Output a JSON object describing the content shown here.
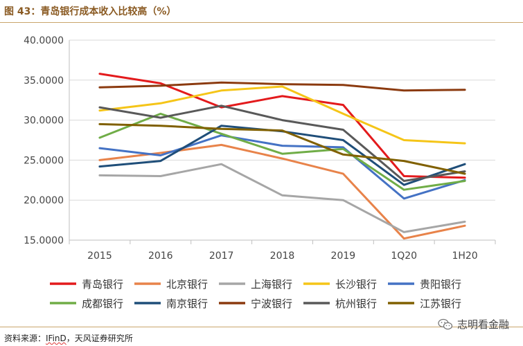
{
  "figure": {
    "title": "图 43：青岛银行成本收入比较高（%）",
    "source_prefix": "资料来源：",
    "source_squiggle": "IFinD",
    "source_suffix": "，天风证券研究所",
    "watermark": "志明看金融",
    "watermark_icon": "wechat-icon"
  },
  "chart_data": {
    "type": "line",
    "title": "",
    "xlabel": "",
    "ylabel": "",
    "x": [
      "2015",
      "2016",
      "2017",
      "2018",
      "2019",
      "1Q20",
      "1H20"
    ],
    "ylim": [
      15,
      40
    ],
    "yticks": [
      "15.0000",
      "20.0000",
      "25.0000",
      "30.0000",
      "35.0000",
      "40.0000"
    ],
    "grid": "horizontal",
    "legend_position": "bottom",
    "series": [
      {
        "name": "青岛银行",
        "color": "#e31a1c",
        "values": [
          35.8,
          34.6,
          31.6,
          33.0,
          31.9,
          23.0,
          22.8
        ]
      },
      {
        "name": "北京银行",
        "color": "#e8834a",
        "values": [
          25.0,
          25.9,
          26.9,
          25.2,
          23.3,
          15.2,
          16.8
        ]
      },
      {
        "name": "上海银行",
        "color": "#a6a6a6",
        "values": [
          23.1,
          23.0,
          24.5,
          20.6,
          20.0,
          16.0,
          17.3
        ]
      },
      {
        "name": "长沙银行",
        "color": "#f5c518",
        "values": [
          31.2,
          32.1,
          33.7,
          34.2,
          30.8,
          27.5,
          27.1
        ]
      },
      {
        "name": "贵阳银行",
        "color": "#4472c4",
        "values": [
          26.5,
          25.6,
          28.1,
          26.8,
          26.6,
          20.2,
          22.5
        ]
      },
      {
        "name": "成都银行",
        "color": "#70ad47",
        "values": [
          27.8,
          30.8,
          28.3,
          25.8,
          26.4,
          21.3,
          22.4
        ]
      },
      {
        "name": "南京银行",
        "color": "#1f4e79",
        "values": [
          24.2,
          24.9,
          29.3,
          28.6,
          27.5,
          21.9,
          24.5
        ]
      },
      {
        "name": "宁波银行",
        "color": "#8b3a0f",
        "values": [
          34.1,
          34.3,
          34.7,
          34.5,
          34.4,
          33.7,
          33.8
        ]
      },
      {
        "name": "杭州银行",
        "color": "#595959",
        "values": [
          31.6,
          30.3,
          31.8,
          30.0,
          28.8,
          22.4,
          23.6
        ]
      },
      {
        "name": "江苏银行",
        "color": "#806000",
        "values": [
          29.5,
          29.3,
          28.9,
          28.7,
          25.7,
          24.9,
          23.3
        ]
      }
    ]
  }
}
